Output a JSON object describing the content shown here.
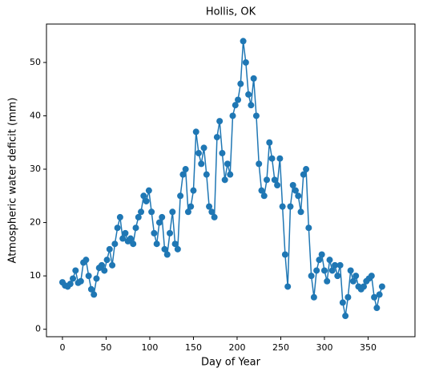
{
  "chart_data": {
    "type": "line",
    "title": "Hollis, OK",
    "xlabel": "Day of Year",
    "ylabel": "Atmospheric water deficit (mm)",
    "x": [
      0,
      3,
      6,
      9,
      12,
      15,
      18,
      21,
      24,
      27,
      30,
      33,
      36,
      39,
      42,
      45,
      48,
      51,
      54,
      57,
      60,
      63,
      66,
      69,
      72,
      75,
      78,
      81,
      84,
      87,
      90,
      93,
      96,
      99,
      102,
      105,
      108,
      111,
      114,
      117,
      120,
      123,
      126,
      129,
      132,
      135,
      138,
      141,
      144,
      147,
      150,
      153,
      156,
      159,
      162,
      165,
      168,
      171,
      174,
      177,
      180,
      183,
      186,
      189,
      192,
      195,
      198,
      201,
      204,
      207,
      210,
      213,
      216,
      219,
      222,
      225,
      228,
      231,
      234,
      237,
      240,
      243,
      246,
      249,
      252,
      255,
      258,
      261,
      264,
      267,
      270,
      273,
      276,
      279,
      282,
      285,
      288,
      291,
      294,
      297,
      300,
      303,
      306,
      309,
      312,
      315,
      318,
      321,
      324,
      327,
      330,
      333,
      336,
      339,
      342,
      345,
      348,
      351,
      354,
      357,
      360,
      363,
      366
    ],
    "series": [
      {
        "color": "#1f77b4",
        "marker": "circle",
        "values": [
          8.8,
          8.2,
          8.0,
          8.5,
          9.5,
          11.0,
          8.7,
          9.0,
          12.5,
          13.0,
          10.0,
          7.5,
          6.5,
          9.5,
          11.5,
          12.0,
          11.0,
          13.0,
          15.0,
          12.0,
          16.0,
          19.0,
          21.0,
          17.0,
          18.0,
          16.5,
          17.0,
          16.0,
          19.0,
          21.0,
          22.0,
          25.0,
          24.0,
          26.0,
          22.0,
          18.0,
          16.0,
          20.0,
          21.0,
          15.0,
          14.0,
          18.0,
          22.0,
          16.0,
          15.0,
          25.0,
          29.0,
          30.0,
          22.0,
          23.0,
          26.0,
          37.0,
          33.0,
          31.0,
          34.0,
          29.0,
          23.0,
          22.0,
          21.0,
          36.0,
          39.0,
          33.0,
          28.0,
          31.0,
          29.0,
          40.0,
          42.0,
          43.0,
          46.0,
          54.0,
          50.0,
          44.0,
          42.0,
          47.0,
          40.0,
          31.0,
          26.0,
          25.0,
          28.0,
          35.0,
          32.0,
          28.0,
          27.0,
          32.0,
          23.0,
          14.0,
          8.0,
          23.0,
          27.0,
          26.0,
          25.0,
          22.0,
          29.0,
          30.0,
          19.0,
          10.0,
          6.0,
          11.0,
          13.0,
          14.0,
          11.0,
          9.0,
          13.0,
          11.0,
          12.0,
          10.0,
          12.0,
          5.0,
          2.5,
          6.0,
          11.0,
          9.0,
          10.0,
          8.0,
          7.5,
          8.0,
          9.0,
          9.5,
          10.0,
          6.0,
          4.0,
          6.5,
          8.0
        ]
      }
    ],
    "xlim": [
      -18.3,
      403.7
    ],
    "xticks": [
      0,
      50,
      100,
      150,
      200,
      250,
      300,
      350
    ],
    "ylim": [
      -1.4,
      57.2
    ],
    "yticks": [
      0,
      10,
      20,
      30,
      40,
      50
    ],
    "grid": false
  }
}
